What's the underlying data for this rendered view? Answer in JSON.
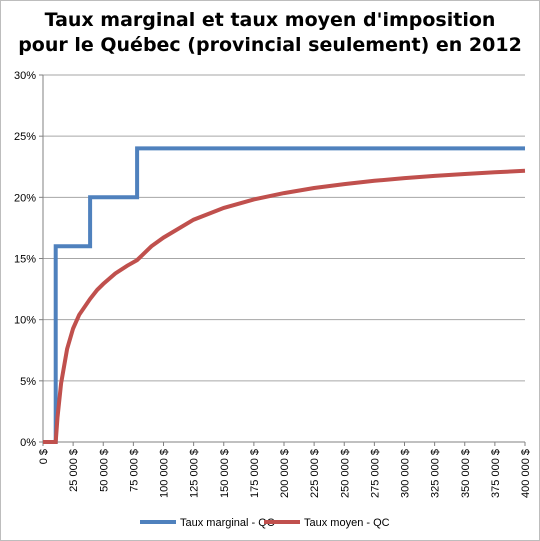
{
  "chart_data": {
    "type": "line",
    "title_lines": [
      "Taux marginal et taux moyen d'imposition",
      "pour le Québec (provincial seulement) en 2012"
    ],
    "xlabel": "",
    "ylabel": "",
    "xlim": [
      0,
      400000
    ],
    "ylim": [
      0,
      0.3
    ],
    "x_ticks": [
      0,
      25000,
      50000,
      75000,
      100000,
      125000,
      150000,
      175000,
      200000,
      225000,
      250000,
      275000,
      300000,
      325000,
      350000,
      375000,
      400000
    ],
    "x_tick_labels": [
      "0 $",
      "25 000 $",
      "50 000 $",
      "75 000 $",
      "100 000 $",
      "125 000 $",
      "150 000 $",
      "175 000 $",
      "200 000 $",
      "225 000 $",
      "250 000 $",
      "275 000 $",
      "300 000 $",
      "325 000 $",
      "350 000 $",
      "375 000 $",
      "400 000 $"
    ],
    "y_ticks": [
      0,
      0.05,
      0.1,
      0.15,
      0.2,
      0.25,
      0.3
    ],
    "y_tick_labels": [
      "0%",
      "5%",
      "10%",
      "15%",
      "20%",
      "25%",
      "30%"
    ],
    "grid": "horizontal",
    "legend_position": "bottom",
    "series": [
      {
        "name": "Taux marginal - QC",
        "color": "#4f81bd",
        "step": true,
        "x": [
          0,
          10500,
          10500,
          39060,
          39060,
          78120,
          78120,
          400000
        ],
        "values": [
          0,
          0,
          0.16,
          0.16,
          0.2,
          0.2,
          0.24,
          0.24
        ]
      },
      {
        "name": "Taux moyen - QC",
        "color": "#c0504d",
        "step": false,
        "x": [
          0,
          10500,
          12000,
          15000,
          20000,
          25000,
          30000,
          39060,
          45000,
          50000,
          60000,
          70000,
          78120,
          90000,
          100000,
          125000,
          150000,
          175000,
          200000,
          225000,
          250000,
          275000,
          300000,
          325000,
          350000,
          375000,
          400000
        ],
        "values": [
          0,
          0,
          0.0201,
          0.048,
          0.076,
          0.0928,
          0.104,
          0.117,
          0.1243,
          0.1292,
          0.1377,
          0.1441,
          0.1487,
          0.16,
          0.1671,
          0.1817,
          0.1914,
          0.1983,
          0.2035,
          0.2076,
          0.2108,
          0.2135,
          0.2157,
          0.2175,
          0.2191,
          0.2205,
          0.2217
        ]
      }
    ]
  }
}
